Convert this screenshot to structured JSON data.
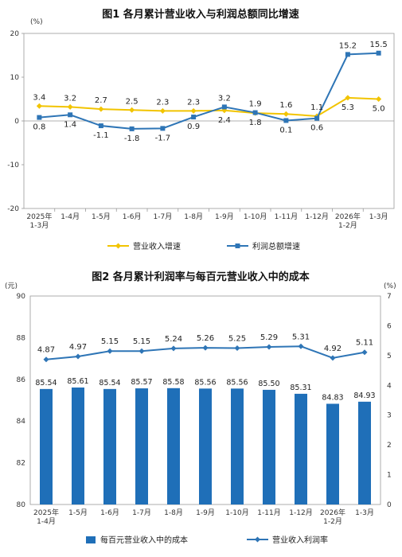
{
  "chart_data": [
    {
      "type": "line",
      "title": "图1 各月累计营业收入与利润总额同比增速",
      "y_unit": "(%)",
      "ylim": [
        -20,
        20
      ],
      "yticks": [
        -20,
        -10,
        0,
        10,
        20
      ],
      "categories": [
        "2025年\n1-3月",
        "1-4月",
        "1-5月",
        "1-6月",
        "1-7月",
        "1-8月",
        "1-9月",
        "1-10月",
        "1-11月",
        "1-12月",
        "2026年\n1-2月",
        "1-3月"
      ],
      "series": [
        {
          "name": "营业收入增速",
          "color": "#F2C400",
          "values": [
            3.4,
            3.2,
            2.7,
            2.5,
            2.3,
            2.3,
            2.4,
            1.8,
            1.6,
            1.1,
            5.3,
            5.0
          ],
          "labels": [
            "3.4",
            "3.2",
            "2.7",
            "2.5",
            "2.3",
            "2.3",
            "2.4",
            "1.8",
            "1.6",
            "1.1",
            "5.3",
            "5.0"
          ]
        },
        {
          "name": "利润总额增速",
          "color": "#2E75B6",
          "values": [
            0.8,
            1.4,
            -1.1,
            -1.8,
            -1.7,
            0.9,
            3.2,
            1.9,
            0.1,
            0.6,
            15.2,
            15.5
          ],
          "labels": [
            "0.8",
            "1.4",
            "-1.1",
            "-1.8",
            "-1.7",
            "0.9",
            "3.2",
            "1.9",
            "0.1",
            "0.6",
            "15.2",
            "15.5"
          ]
        }
      ],
      "legend": "bottom"
    },
    {
      "type": "bar",
      "title": "图2 各月累计利润率与每百元营业收入中的成本",
      "y_left_unit": "(元)",
      "y_right_unit": "(%)",
      "ylim_left": [
        80,
        90
      ],
      "yticks_left": [
        80,
        82,
        84,
        86,
        88,
        90
      ],
      "ylim_right": [
        0,
        7
      ],
      "yticks_right": [
        0,
        1,
        2,
        3,
        4,
        5,
        6,
        7
      ],
      "categories": [
        "2025年\n1-4月",
        "1-5月",
        "1-6月",
        "1-7月",
        "1-8月",
        "1-9月",
        "1-10月",
        "1-11月",
        "1-12月",
        "2026年\n1-2月",
        "1-3月"
      ],
      "series": [
        {
          "name": "每百元营业收入中的成本",
          "kind": "bar",
          "axis": "left",
          "color": "#1F6FB8",
          "values": [
            85.54,
            85.61,
            85.54,
            85.57,
            85.58,
            85.56,
            85.56,
            85.5,
            85.31,
            84.83,
            84.93
          ],
          "labels": [
            "85.54",
            "85.61",
            "85.54",
            "85.57",
            "85.58",
            "85.56",
            "85.56",
            "85.50",
            "85.31",
            "84.83",
            "84.93"
          ]
        },
        {
          "name": "营业收入利润率",
          "kind": "line",
          "axis": "right",
          "color": "#2E75B6",
          "values": [
            4.87,
            4.97,
            5.15,
            5.15,
            5.24,
            5.26,
            5.25,
            5.29,
            5.31,
            4.92,
            5.11
          ],
          "labels": [
            "4.87",
            "4.97",
            "5.15",
            "5.15",
            "5.24",
            "5.26",
            "5.25",
            "5.29",
            "5.31",
            "4.92",
            "5.11"
          ]
        }
      ],
      "legend": "bottom"
    }
  ]
}
